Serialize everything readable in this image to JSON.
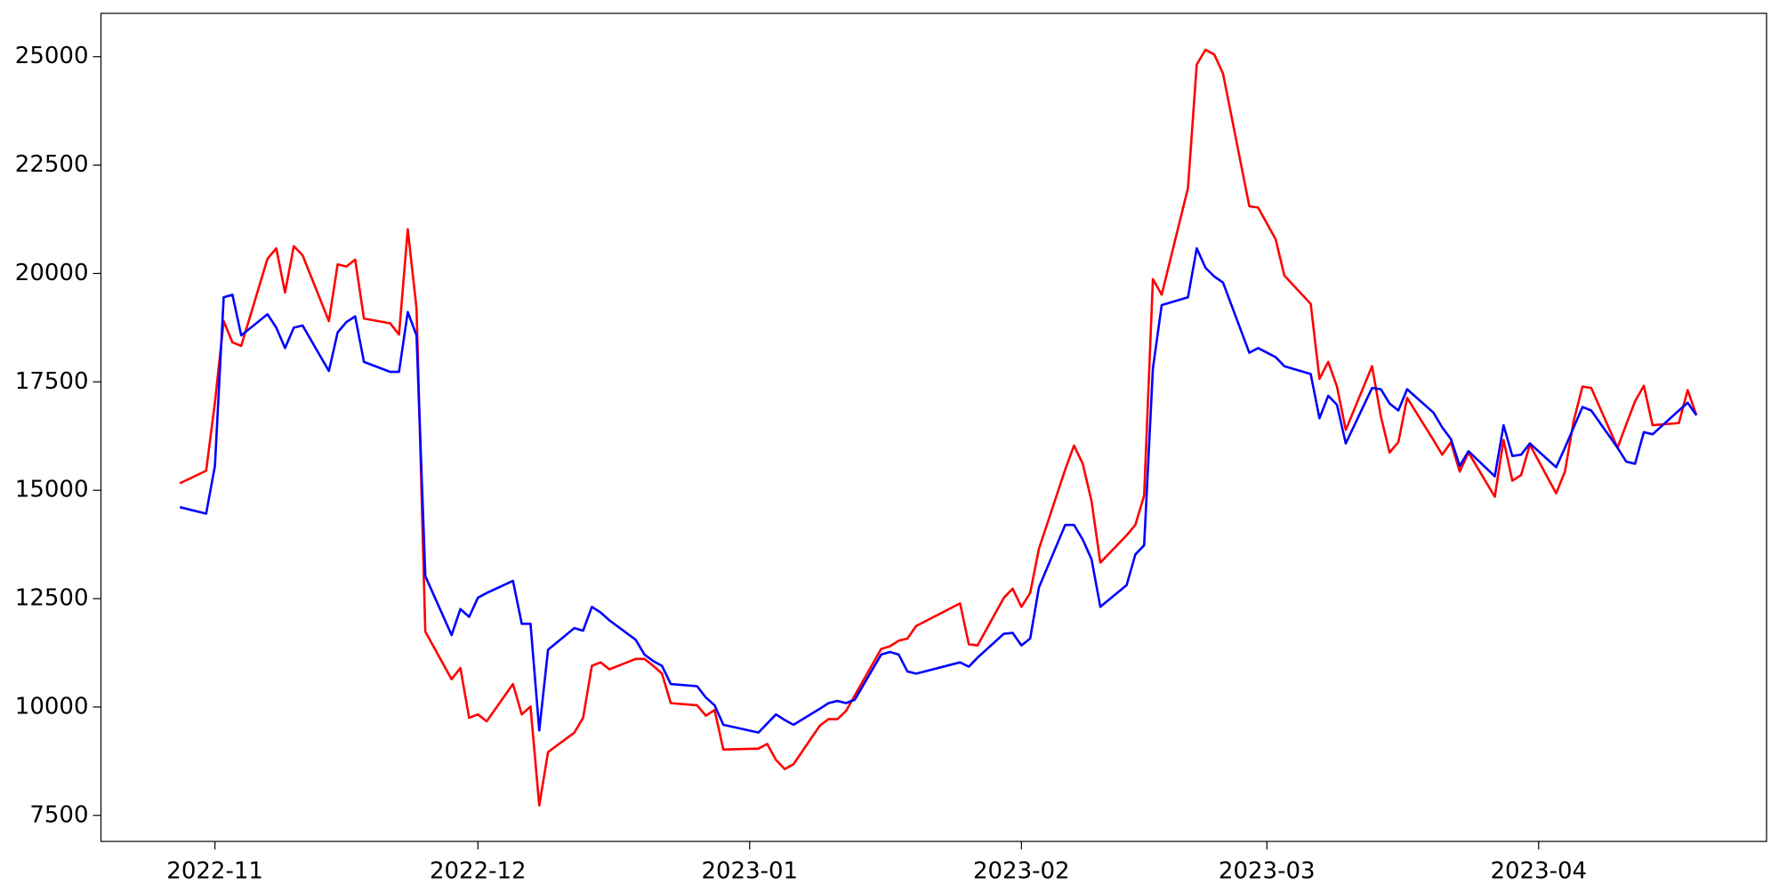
{
  "chart_data": {
    "type": "line",
    "x": [
      "2022-10-28",
      "2022-10-31",
      "2022-11-01",
      "2022-11-02",
      "2022-11-03",
      "2022-11-04",
      "2022-11-07",
      "2022-11-08",
      "2022-11-09",
      "2022-11-10",
      "2022-11-11",
      "2022-11-14",
      "2022-11-15",
      "2022-11-16",
      "2022-11-17",
      "2022-11-18",
      "2022-11-21",
      "2022-11-22",
      "2022-11-23",
      "2022-11-24",
      "2022-11-25",
      "2022-11-28",
      "2022-11-29",
      "2022-11-30",
      "2022-12-01",
      "2022-12-02",
      "2022-12-05",
      "2022-12-06",
      "2022-12-07",
      "2022-12-08",
      "2022-12-09",
      "2022-12-12",
      "2022-12-13",
      "2022-12-14",
      "2022-12-15",
      "2022-12-16",
      "2022-12-19",
      "2022-12-20",
      "2022-12-21",
      "2022-12-22",
      "2022-12-23",
      "2022-12-26",
      "2022-12-27",
      "2022-12-28",
      "2022-12-29",
      "2023-01-02",
      "2023-01-03",
      "2023-01-04",
      "2023-01-05",
      "2023-01-06",
      "2023-01-09",
      "2023-01-10",
      "2023-01-11",
      "2023-01-12",
      "2023-01-13",
      "2023-01-16",
      "2023-01-17",
      "2023-01-18",
      "2023-01-19",
      "2023-01-20",
      "2023-01-25",
      "2023-01-26",
      "2023-01-27",
      "2023-01-30",
      "2023-01-31",
      "2023-02-01",
      "2023-02-02",
      "2023-02-03",
      "2023-02-06",
      "2023-02-07",
      "2023-02-08",
      "2023-02-09",
      "2023-02-10",
      "2023-02-13",
      "2023-02-14",
      "2023-02-15",
      "2023-02-16",
      "2023-02-17",
      "2023-02-20",
      "2023-02-21",
      "2023-02-22",
      "2023-02-23",
      "2023-02-24",
      "2023-02-27",
      "2023-02-28",
      "2023-03-02",
      "2023-03-03",
      "2023-03-06",
      "2023-03-07",
      "2023-03-08",
      "2023-03-09",
      "2023-03-10",
      "2023-03-13",
      "2023-03-14",
      "2023-03-15",
      "2023-03-16",
      "2023-03-17",
      "2023-03-20",
      "2023-03-21",
      "2023-03-22",
      "2023-03-23",
      "2023-03-24",
      "2023-03-27",
      "2023-03-28",
      "2023-03-29",
      "2023-03-30",
      "2023-03-31",
      "2023-04-03",
      "2023-04-04",
      "2023-04-05",
      "2023-04-06",
      "2023-04-07",
      "2023-04-10",
      "2023-04-11",
      "2023-04-12",
      "2023-04-13",
      "2023-04-14",
      "2023-04-17",
      "2023-04-18",
      "2023-04-19"
    ],
    "series": [
      {
        "color": "red",
        "values": [
          15160,
          15450,
          17020,
          18900,
          18410,
          18330,
          20340,
          20580,
          19560,
          20630,
          20420,
          18900,
          20210,
          20160,
          20320,
          18960,
          18850,
          18590,
          21020,
          19190,
          11740,
          10640,
          10900,
          9750,
          9830,
          9670,
          10530,
          9830,
          10010,
          7730,
          8960,
          9410,
          9750,
          10950,
          11030,
          10870,
          11110,
          11110,
          10950,
          10770,
          10090,
          10040,
          9800,
          9930,
          9020,
          9040,
          9150,
          8780,
          8570,
          8680,
          9570,
          9720,
          9720,
          9910,
          10270,
          11340,
          11400,
          11530,
          11580,
          11870,
          12390,
          11450,
          11420,
          12520,
          12730,
          12310,
          12630,
          13650,
          15480,
          16030,
          15610,
          14750,
          13330,
          13960,
          14200,
          14880,
          19870,
          19510,
          21970,
          24820,
          25160,
          25050,
          24610,
          21550,
          21520,
          20790,
          19950,
          19300,
          17570,
          17960,
          17390,
          16390,
          17860,
          16710,
          15870,
          16110,
          17130,
          16160,
          15820,
          16110,
          15430,
          15870,
          14850,
          16160,
          15220,
          15350,
          16050,
          14930,
          15430,
          16600,
          17390,
          17360,
          15980,
          16520,
          17050,
          17410,
          16500,
          16550,
          17310,
          16730
        ]
      },
      {
        "color": "blue",
        "values": [
          14610,
          14460,
          15560,
          19450,
          19510,
          18570,
          19060,
          18750,
          18280,
          18750,
          18800,
          17750,
          18640,
          18880,
          19010,
          17960,
          17730,
          17730,
          19110,
          18570,
          13020,
          11660,
          12260,
          12080,
          12520,
          12630,
          12910,
          11920,
          11920,
          9460,
          11320,
          11820,
          11760,
          12310,
          12180,
          12000,
          11550,
          11210,
          11060,
          10950,
          10530,
          10480,
          10220,
          10040,
          9590,
          9410,
          9620,
          9830,
          9700,
          9590,
          9960,
          10090,
          10140,
          10090,
          10170,
          11210,
          11270,
          11210,
          10820,
          10770,
          11030,
          10930,
          11140,
          11690,
          11710,
          11420,
          11580,
          12760,
          14200,
          14200,
          13860,
          13410,
          12310,
          12810,
          13520,
          13730,
          17810,
          19270,
          19450,
          20580,
          20130,
          19930,
          19790,
          18170,
          18280,
          18070,
          17860,
          17680,
          16660,
          17180,
          16970,
          16080,
          17360,
          17330,
          17000,
          16840,
          17330,
          16790,
          16450,
          16180,
          15560,
          15900,
          15320,
          16500,
          15790,
          15820,
          16080,
          15530,
          15980,
          16450,
          16920,
          16840,
          15980,
          15660,
          15610,
          16340,
          16290,
          16840,
          17020,
          16730
        ]
      }
    ],
    "xlim": [
      "2022-10-19",
      "2023-04-27"
    ],
    "xticks": [
      {
        "value": "2022-11-01",
        "label": "2022-11"
      },
      {
        "value": "2022-12-01",
        "label": "2022-12"
      },
      {
        "value": "2023-01-01",
        "label": "2023-01"
      },
      {
        "value": "2023-02-01",
        "label": "2023-02"
      },
      {
        "value": "2023-03-01",
        "label": "2023-03"
      },
      {
        "value": "2023-04-01",
        "label": "2023-04"
      }
    ],
    "ylim": [
      6900,
      26000
    ],
    "yticks": [
      7500,
      10000,
      12500,
      15000,
      17500,
      20000,
      22500,
      25000
    ],
    "grid": false
  }
}
